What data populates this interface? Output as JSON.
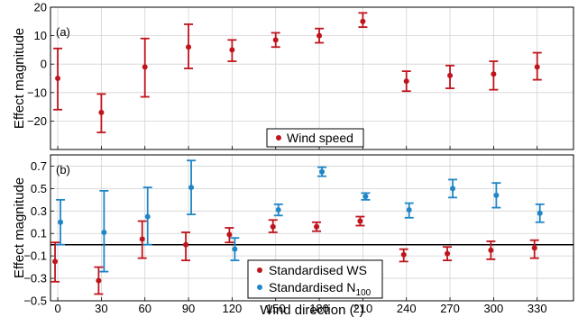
{
  "chart_data": [
    {
      "type": "scatter",
      "panel_label": "(a)",
      "ylabel": "Effect magnitude",
      "xlabel": "",
      "ylim": [
        -30,
        20
      ],
      "xlim": [
        -5,
        355
      ],
      "yticks": [
        -20,
        -10,
        0,
        10,
        20
      ],
      "ytick_labels": [
        "−20",
        "−10",
        "0",
        "10",
        "20"
      ],
      "xticks": [
        0,
        30,
        60,
        90,
        120,
        150,
        180,
        210,
        240,
        270,
        300,
        330
      ],
      "grid": true,
      "legend_placement": "bottom-center",
      "series": [
        {
          "name": "Wind speed",
          "color": "#c0141c",
          "x": [
            0,
            30,
            60,
            90,
            120,
            150,
            180,
            210,
            240,
            270,
            300,
            330
          ],
          "y": [
            -5,
            -17,
            -1,
            6,
            5,
            8.5,
            10,
            15,
            -6,
            -4,
            -3.5,
            -1
          ],
          "err_low": [
            -16,
            -24,
            -11.5,
            -1.5,
            1,
            6,
            7.5,
            13,
            -9.5,
            -8.5,
            -9,
            -5.5
          ],
          "err_high": [
            5.5,
            -10.5,
            9,
            14,
            8.5,
            11,
            12.5,
            18,
            -2.5,
            -0.5,
            1,
            4
          ]
        }
      ]
    },
    {
      "type": "scatter",
      "panel_label": "(b)",
      "ylabel": "Effect magnitude",
      "xlabel": "Wind direction (°)",
      "ylim": [
        -0.5,
        0.8
      ],
      "xlim": [
        -5,
        355
      ],
      "yticks": [
        -0.5,
        -0.3,
        -0.1,
        0.1,
        0.3,
        0.5,
        0.7
      ],
      "ytick_labels": [
        "−0.5",
        "−0.3",
        "−0.1",
        "0.1",
        "0.3",
        "0.5",
        "0.7"
      ],
      "xticks": [
        0,
        30,
        60,
        90,
        120,
        150,
        180,
        210,
        240,
        270,
        300,
        330
      ],
      "xtick_labels": [
        "0",
        "30",
        "60",
        "90",
        "120",
        "150",
        "180",
        "210",
        "240",
        "270",
        "300",
        "330"
      ],
      "zero_line": 0,
      "grid": true,
      "legend_placement": "bottom-center",
      "series": [
        {
          "name": "Standardised WS",
          "color": "#c0141c",
          "x": [
            0,
            30,
            60,
            90,
            120,
            150,
            180,
            210,
            240,
            270,
            300,
            330
          ],
          "y": [
            -0.15,
            -0.32,
            0.05,
            0.0,
            0.09,
            0.16,
            0.16,
            0.21,
            -0.09,
            -0.08,
            -0.05,
            -0.03
          ],
          "err_low": [
            -0.33,
            -0.44,
            -0.12,
            -0.14,
            0.02,
            0.11,
            0.12,
            0.17,
            -0.15,
            -0.14,
            -0.13,
            -0.12
          ],
          "err_high": [
            0.02,
            -0.2,
            0.21,
            0.11,
            0.15,
            0.22,
            0.2,
            0.25,
            -0.04,
            -0.02,
            0.03,
            0.04
          ]
        },
        {
          "name_prefix": "Standardised N",
          "name_subscript": "100",
          "color": "#1f86c8",
          "x": [
            0,
            30,
            60,
            90,
            120,
            150,
            180,
            210,
            240,
            270,
            300,
            330
          ],
          "y": [
            0.2,
            0.11,
            0.25,
            0.51,
            -0.04,
            0.31,
            0.65,
            0.43,
            0.31,
            0.5,
            0.44,
            0.28
          ],
          "err_low": [
            0.0,
            -0.24,
            0.0,
            0.27,
            -0.14,
            0.26,
            0.61,
            0.4,
            0.24,
            0.42,
            0.33,
            0.2
          ],
          "err_high": [
            0.4,
            0.48,
            0.51,
            0.75,
            0.06,
            0.36,
            0.69,
            0.46,
            0.37,
            0.58,
            0.55,
            0.36
          ]
        }
      ]
    }
  ]
}
